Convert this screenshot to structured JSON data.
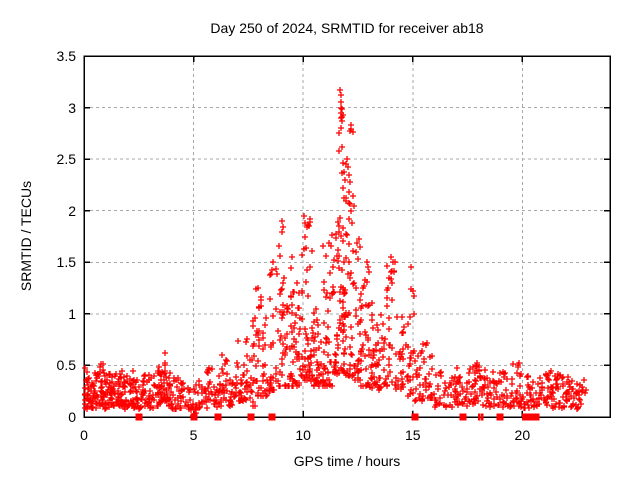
{
  "title": "Day 250 of 2024, SRMTID for receiver ab18",
  "chart_data": {
    "type": "scatter",
    "title": "Day 250 of 2024, SRMTID for receiver ab18",
    "xlabel": "GPS time / hours",
    "ylabel": "SRMTID / TECUs",
    "xlim": [
      0,
      24
    ],
    "ylim": [
      0,
      3.5
    ],
    "xticks": [
      0,
      5,
      10,
      15,
      20
    ],
    "yticks": [
      0,
      0.5,
      1,
      1.5,
      2,
      2.5,
      3,
      3.5
    ],
    "grid": "dashed",
    "legend": "none",
    "marker": "plus",
    "series_color": "#ff0000",
    "grid_color": "#a8a8a8",
    "border_color": "#000000",
    "peak_points": [
      [
        11.7,
        3.17
      ],
      [
        11.72,
        3.12
      ],
      [
        11.71,
        3.05
      ],
      [
        11.73,
        3.0
      ],
      [
        11.76,
        2.99
      ],
      [
        11.74,
        2.95
      ],
      [
        11.72,
        2.9
      ],
      [
        11.75,
        2.87
      ],
      [
        11.73,
        2.8
      ],
      [
        12.2,
        2.83
      ],
      [
        11.78,
        2.62
      ],
      [
        12.0,
        2.5
      ],
      [
        11.95,
        2.45
      ],
      [
        12.05,
        2.42
      ],
      [
        11.85,
        2.38
      ],
      [
        12.1,
        2.35
      ],
      [
        11.9,
        2.3
      ],
      [
        12.15,
        2.28
      ],
      [
        11.8,
        2.22
      ],
      [
        12.08,
        2.18
      ],
      [
        11.97,
        2.12
      ],
      [
        12.3,
        2.05
      ],
      [
        10.05,
        1.95
      ],
      [
        10.3,
        1.92
      ],
      [
        10.1,
        1.88
      ],
      [
        10.28,
        1.85
      ],
      [
        9.05,
        1.9
      ],
      [
        9.03,
        1.79
      ],
      [
        9.5,
        1.55
      ],
      [
        11.3,
        1.76
      ],
      [
        10.9,
        1.66
      ],
      [
        12.55,
        1.73
      ],
      [
        12.6,
        1.65
      ],
      [
        14.0,
        1.55
      ],
      [
        14.1,
        1.5
      ],
      [
        14.15,
        1.42
      ],
      [
        13.9,
        1.35
      ],
      [
        8.62,
        1.5
      ],
      [
        8.58,
        1.43
      ],
      [
        7.95,
        1.25
      ],
      [
        14.9,
        1.45
      ],
      [
        3.7,
        0.62
      ],
      [
        6.3,
        0.6
      ]
    ],
    "cloud_bins": [
      [
        0.0,
        0.3,
        0.08,
        0.5,
        28,
        1.3
      ],
      [
        0.3,
        0.6,
        0.08,
        0.45,
        28,
        1.3
      ],
      [
        0.6,
        0.9,
        0.1,
        0.52,
        28,
        1.3
      ],
      [
        0.9,
        1.2,
        0.08,
        0.45,
        28,
        1.3
      ],
      [
        1.2,
        1.5,
        0.08,
        0.42,
        26,
        1.3
      ],
      [
        1.5,
        1.8,
        0.1,
        0.45,
        26,
        1.3
      ],
      [
        1.8,
        2.1,
        0.08,
        0.4,
        24,
        1.3
      ],
      [
        2.1,
        2.4,
        0.08,
        0.45,
        24,
        1.3
      ],
      [
        2.4,
        2.7,
        0.07,
        0.38,
        18,
        1.3
      ],
      [
        2.7,
        3.0,
        0.1,
        0.42,
        20,
        1.3
      ],
      [
        3.0,
        3.4,
        0.08,
        0.45,
        22,
        1.3
      ],
      [
        3.4,
        3.65,
        0.12,
        0.5,
        20,
        1.3
      ],
      [
        3.65,
        3.8,
        0.15,
        0.6,
        16,
        1.5
      ],
      [
        3.8,
        3.95,
        0.1,
        0.45,
        14,
        1.3
      ],
      [
        3.95,
        4.3,
        0.08,
        0.4,
        20,
        1.3
      ],
      [
        4.3,
        4.7,
        0.08,
        0.35,
        16,
        1.3
      ],
      [
        4.7,
        4.95,
        0.06,
        0.3,
        10,
        1.3
      ],
      [
        4.95,
        5.25,
        0.01,
        0.32,
        16,
        1.8
      ],
      [
        5.25,
        5.6,
        0.08,
        0.4,
        16,
        1.3
      ],
      [
        5.6,
        6.0,
        0.12,
        0.55,
        20,
        1.4
      ],
      [
        6.0,
        6.3,
        0.1,
        0.5,
        18,
        1.4
      ],
      [
        6.3,
        6.55,
        0.15,
        0.58,
        16,
        1.4
      ],
      [
        6.55,
        6.9,
        0.1,
        0.45,
        16,
        1.3
      ],
      [
        6.9,
        7.2,
        0.15,
        0.75,
        18,
        1.6
      ],
      [
        7.2,
        7.5,
        0.15,
        0.95,
        20,
        1.8
      ],
      [
        7.5,
        7.8,
        0.1,
        1.0,
        20,
        1.8
      ],
      [
        7.8,
        8.1,
        0.2,
        1.25,
        22,
        1.8
      ],
      [
        8.1,
        8.45,
        0.2,
        1.05,
        20,
        1.7
      ],
      [
        8.45,
        8.8,
        0.25,
        1.5,
        24,
        1.8
      ],
      [
        8.8,
        9.15,
        0.3,
        1.88,
        26,
        1.9
      ],
      [
        9.15,
        9.45,
        0.3,
        1.2,
        22,
        1.7
      ],
      [
        9.45,
        9.65,
        0.3,
        1.52,
        20,
        1.8
      ],
      [
        9.65,
        9.95,
        0.3,
        1.3,
        24,
        1.7
      ],
      [
        9.95,
        10.2,
        0.35,
        1.9,
        26,
        1.9
      ],
      [
        10.2,
        10.45,
        0.35,
        1.9,
        26,
        1.9
      ],
      [
        10.45,
        10.75,
        0.3,
        1.4,
        28,
        1.7
      ],
      [
        10.75,
        11.1,
        0.3,
        1.62,
        28,
        1.7
      ],
      [
        11.1,
        11.45,
        0.3,
        1.72,
        28,
        1.7
      ],
      [
        11.45,
        11.65,
        0.4,
        1.9,
        24,
        1.7
      ],
      [
        11.65,
        11.85,
        0.45,
        3.1,
        34,
        2.2
      ],
      [
        11.85,
        12.1,
        0.4,
        2.5,
        30,
        2.1
      ],
      [
        12.1,
        12.35,
        0.4,
        2.8,
        26,
        2.2
      ],
      [
        12.35,
        12.65,
        0.35,
        1.72,
        28,
        1.8
      ],
      [
        12.65,
        13.0,
        0.3,
        1.52,
        28,
        1.8
      ],
      [
        13.0,
        13.35,
        0.25,
        1.2,
        26,
        1.6
      ],
      [
        13.35,
        13.8,
        0.25,
        1.0,
        28,
        1.5
      ],
      [
        13.8,
        14.25,
        0.3,
        1.52,
        28,
        1.8
      ],
      [
        14.25,
        14.7,
        0.25,
        1.0,
        24,
        1.5
      ],
      [
        14.7,
        15.05,
        0.2,
        1.4,
        22,
        1.8
      ],
      [
        15.05,
        15.45,
        0.15,
        0.65,
        20,
        1.4
      ],
      [
        15.45,
        15.95,
        0.18,
        0.75,
        26,
        1.4
      ],
      [
        15.95,
        16.5,
        0.1,
        0.45,
        22,
        1.3
      ],
      [
        16.5,
        17.0,
        0.1,
        0.4,
        20,
        1.3
      ],
      [
        17.0,
        17.5,
        0.1,
        0.5,
        24,
        1.3
      ],
      [
        17.5,
        18.0,
        0.12,
        0.55,
        26,
        1.3
      ],
      [
        18.0,
        18.5,
        0.1,
        0.5,
        26,
        1.3
      ],
      [
        18.5,
        19.0,
        0.1,
        0.45,
        22,
        1.3
      ],
      [
        19.0,
        19.5,
        0.08,
        0.45,
        24,
        1.3
      ],
      [
        19.5,
        20.0,
        0.1,
        0.55,
        26,
        1.4
      ],
      [
        20.0,
        20.4,
        0.08,
        0.4,
        18,
        1.3
      ],
      [
        20.4,
        20.9,
        0.08,
        0.4,
        22,
        1.3
      ],
      [
        20.9,
        21.4,
        0.1,
        0.45,
        26,
        1.3
      ],
      [
        21.4,
        21.9,
        0.08,
        0.42,
        26,
        1.3
      ],
      [
        21.9,
        22.4,
        0.08,
        0.4,
        24,
        1.3
      ],
      [
        22.4,
        22.95,
        0.08,
        0.42,
        24,
        1.3
      ]
    ],
    "zero_marker_hours": [
      2.5,
      5.0,
      6.13,
      7.63,
      8.58,
      15.12,
      17.3,
      19.0,
      20.2,
      20.5,
      20.62
    ],
    "zero_marker_thin_hours": [
      18.0,
      18.15,
      20.05
    ]
  }
}
